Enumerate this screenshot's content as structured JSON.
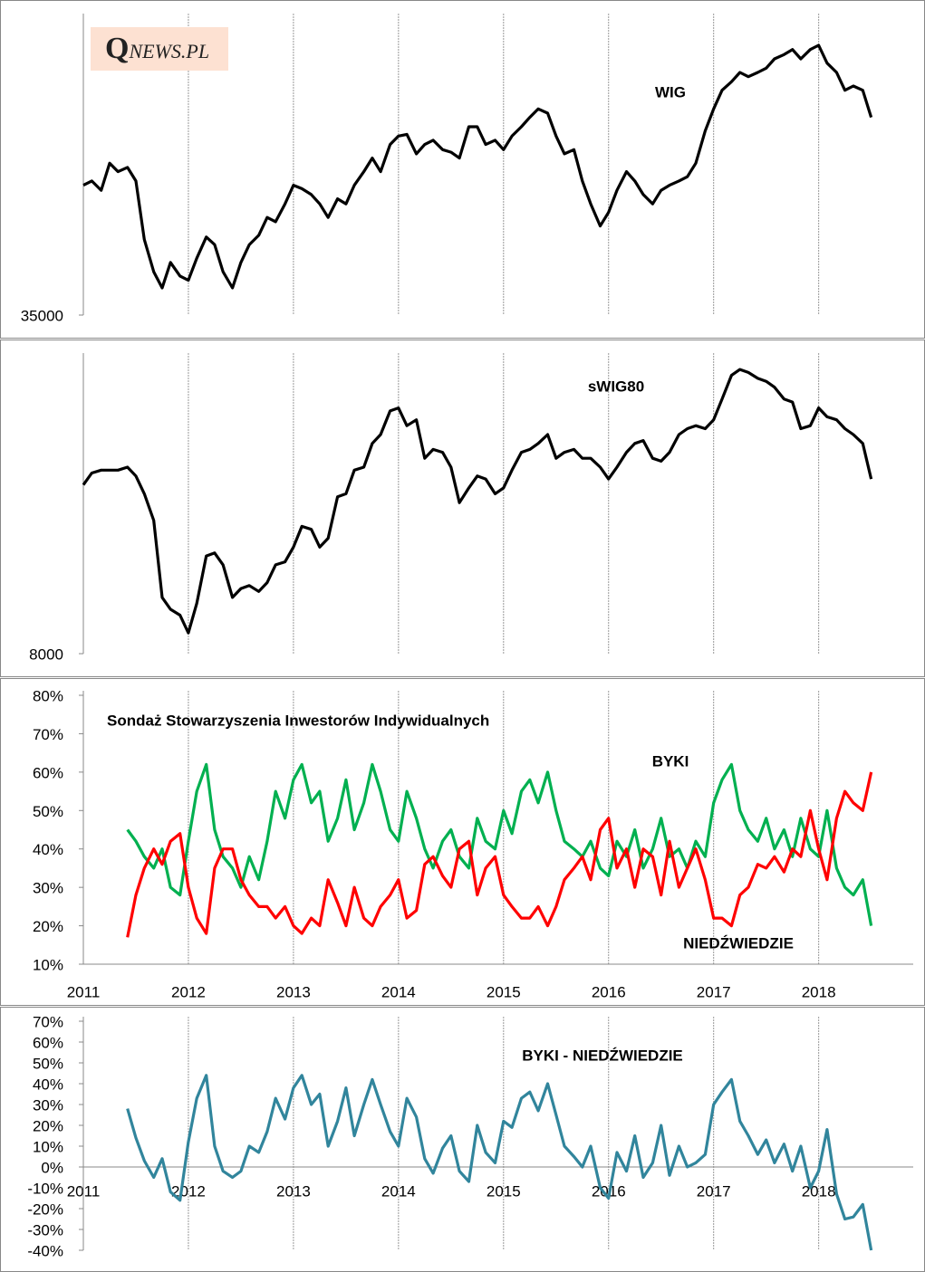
{
  "logo": "QNEWS.PL",
  "chart_data": [
    {
      "type": "line",
      "x_labels": false,
      "xlim": [
        2011,
        2018.9
      ],
      "xticks": [
        2011,
        2012,
        2013,
        2014,
        2015,
        2016,
        2017,
        2018
      ],
      "ylim": [
        35000,
        70000
      ],
      "yticks": [
        35000
      ],
      "x": [
        2011,
        2011.08,
        2011.17,
        2011.25,
        2011.33,
        2011.42,
        2011.5,
        2011.58,
        2011.67,
        2011.75,
        2011.83,
        2011.92,
        2012,
        2012.08,
        2012.17,
        2012.25,
        2012.33,
        2012.42,
        2012.5,
        2012.58,
        2012.67,
        2012.75,
        2012.83,
        2012.92,
        2013,
        2013.08,
        2013.17,
        2013.25,
        2013.33,
        2013.42,
        2013.5,
        2013.58,
        2013.67,
        2013.75,
        2013.83,
        2013.92,
        2014,
        2014.08,
        2014.17,
        2014.25,
        2014.33,
        2014.42,
        2014.5,
        2014.58,
        2014.67,
        2014.75,
        2014.83,
        2014.92,
        2015,
        2015.08,
        2015.17,
        2015.25,
        2015.33,
        2015.42,
        2015.5,
        2015.58,
        2015.67,
        2015.75,
        2015.83,
        2015.92,
        2016,
        2016.08,
        2016.17,
        2016.25,
        2016.33,
        2016.42,
        2016.5,
        2016.58,
        2016.67,
        2016.75,
        2016.83,
        2016.92,
        2017,
        2017.08,
        2017.17,
        2017.25,
        2017.33,
        2017.42,
        2017.5,
        2017.58,
        2017.67,
        2017.75,
        2017.83,
        2017.92,
        2018,
        2018.08,
        2018.17,
        2018.25,
        2018.33,
        2018.42,
        2018.5
      ],
      "series": [
        {
          "name": "WIG",
          "color": "#000000",
          "values": [
            50300,
            50800,
            49700,
            52900,
            51900,
            52400,
            50800,
            43900,
            40100,
            38200,
            41200,
            39600,
            39100,
            41700,
            44200,
            43300,
            40100,
            38200,
            41200,
            43300,
            44400,
            46500,
            46000,
            48100,
            50300,
            49900,
            49200,
            48100,
            46500,
            48700,
            48100,
            50300,
            51900,
            53500,
            51900,
            55100,
            56100,
            56300,
            54000,
            55100,
            55600,
            54500,
            54200,
            53500,
            57200,
            57200,
            55100,
            55600,
            54500,
            56100,
            57200,
            58300,
            59300,
            58800,
            56100,
            54000,
            54500,
            50800,
            48100,
            45500,
            47100,
            49700,
            51900,
            50800,
            49200,
            48100,
            49700,
            50300,
            50800,
            51300,
            52900,
            56700,
            59300,
            61500,
            62500,
            63600,
            63100,
            63600,
            64100,
            65200,
            65700,
            66300,
            65200,
            66300,
            66800,
            64700,
            63600,
            61500,
            62000,
            61500,
            58300
          ]
        }
      ]
    },
    {
      "type": "line",
      "x_labels": false,
      "xlim": [
        2011,
        2018.9
      ],
      "xticks": [
        2011,
        2012,
        2013,
        2014,
        2015,
        2016,
        2017,
        2018
      ],
      "ylim": [
        8000,
        18000
      ],
      "yticks": [
        8000
      ],
      "x": [
        2011,
        2011.08,
        2011.17,
        2011.25,
        2011.33,
        2011.42,
        2011.5,
        2011.58,
        2011.67,
        2011.75,
        2011.83,
        2011.92,
        2012,
        2012.08,
        2012.17,
        2012.25,
        2012.33,
        2012.42,
        2012.5,
        2012.58,
        2012.67,
        2012.75,
        2012.83,
        2012.92,
        2013,
        2013.08,
        2013.17,
        2013.25,
        2013.33,
        2013.42,
        2013.5,
        2013.58,
        2013.67,
        2013.75,
        2013.83,
        2013.92,
        2014,
        2014.08,
        2014.17,
        2014.25,
        2014.33,
        2014.42,
        2014.5,
        2014.58,
        2014.67,
        2014.75,
        2014.83,
        2014.92,
        2015,
        2015.08,
        2015.17,
        2015.25,
        2015.33,
        2015.42,
        2015.5,
        2015.58,
        2015.67,
        2015.75,
        2015.83,
        2015.92,
        2016,
        2016.08,
        2016.17,
        2016.25,
        2016.33,
        2016.42,
        2016.5,
        2016.58,
        2016.67,
        2016.75,
        2016.83,
        2016.92,
        2017,
        2017.08,
        2017.17,
        2017.25,
        2017.33,
        2017.42,
        2017.5,
        2017.58,
        2017.67,
        2017.75,
        2017.83,
        2017.92,
        2018,
        2018.08,
        2018.17,
        2018.25,
        2018.33,
        2018.42,
        2018.5
      ],
      "series": [
        {
          "name": "sWIG80",
          "color": "#000000",
          "values": [
            13700,
            14100,
            14200,
            14200,
            14200,
            14300,
            14000,
            13400,
            12500,
            9900,
            9500,
            9300,
            8700,
            9700,
            11300,
            11400,
            11000,
            9900,
            10200,
            10300,
            10100,
            10400,
            11000,
            11100,
            11600,
            12300,
            12200,
            11600,
            11900,
            13300,
            13400,
            14200,
            14300,
            15100,
            15400,
            16200,
            16300,
            15700,
            15900,
            14600,
            14900,
            14800,
            14300,
            13100,
            13600,
            14000,
            13900,
            13400,
            13600,
            14200,
            14800,
            14900,
            15100,
            15400,
            14600,
            14800,
            14900,
            14600,
            14600,
            14300,
            13900,
            14300,
            14800,
            15100,
            15200,
            14600,
            14500,
            14800,
            15400,
            15600,
            15700,
            15600,
            15900,
            16600,
            17400,
            17600,
            17500,
            17300,
            17200,
            17000,
            16600,
            16500,
            15600,
            15700,
            16300,
            16000,
            15900,
            15600,
            15400,
            15100,
            13900
          ]
        }
      ]
    },
    {
      "type": "line",
      "title": "Sondaż Stowarzyszenia Inwestorów Indywidualnych",
      "xlim": [
        2011,
        2018.9
      ],
      "xticks": [
        2011,
        2012,
        2013,
        2014,
        2015,
        2016,
        2017,
        2018
      ],
      "ylim": [
        10,
        80
      ],
      "yticks": [
        {
          "value": 10,
          "label": "10%"
        },
        {
          "value": 20,
          "label": "20%"
        },
        {
          "value": 30,
          "label": "30%"
        },
        {
          "value": 40,
          "label": "40%"
        },
        {
          "value": 50,
          "label": "50%"
        },
        {
          "value": 60,
          "label": "60%"
        },
        {
          "value": 70,
          "label": "70%"
        },
        {
          "value": 80,
          "label": "80%"
        }
      ],
      "x": [
        2011.42,
        2011.5,
        2011.58,
        2011.67,
        2011.75,
        2011.83,
        2011.92,
        2012,
        2012.08,
        2012.17,
        2012.25,
        2012.33,
        2012.42,
        2012.5,
        2012.58,
        2012.67,
        2012.75,
        2012.83,
        2012.92,
        2013,
        2013.08,
        2013.17,
        2013.25,
        2013.33,
        2013.42,
        2013.5,
        2013.58,
        2013.67,
        2013.75,
        2013.83,
        2013.92,
        2014,
        2014.08,
        2014.17,
        2014.25,
        2014.33,
        2014.42,
        2014.5,
        2014.58,
        2014.67,
        2014.75,
        2014.83,
        2014.92,
        2015,
        2015.08,
        2015.17,
        2015.25,
        2015.33,
        2015.42,
        2015.5,
        2015.58,
        2015.67,
        2015.75,
        2015.83,
        2015.92,
        2016,
        2016.08,
        2016.17,
        2016.25,
        2016.33,
        2016.42,
        2016.5,
        2016.58,
        2016.67,
        2016.75,
        2016.83,
        2016.92,
        2017,
        2017.08,
        2017.17,
        2017.25,
        2017.33,
        2017.42,
        2017.5,
        2017.58,
        2017.67,
        2017.75,
        2017.83,
        2017.92,
        2018,
        2018.08,
        2018.17,
        2018.25,
        2018.33,
        2018.42,
        2018.5
      ],
      "series": [
        {
          "name": "BYKI",
          "color": "#00b050",
          "values": [
            45,
            42,
            38,
            35,
            40,
            30,
            28,
            42,
            55,
            62,
            45,
            38,
            35,
            30,
            38,
            32,
            42,
            55,
            48,
            58,
            62,
            52,
            55,
            42,
            48,
            58,
            45,
            52,
            62,
            55,
            45,
            42,
            55,
            48,
            40,
            35,
            42,
            45,
            38,
            35,
            48,
            42,
            40,
            50,
            44,
            55,
            58,
            52,
            60,
            50,
            42,
            40,
            38,
            42,
            35,
            33,
            42,
            38,
            45,
            35,
            40,
            48,
            38,
            40,
            35,
            42,
            38,
            52,
            58,
            62,
            50,
            45,
            42,
            48,
            40,
            45,
            38,
            48,
            40,
            38,
            50,
            35,
            30,
            28,
            32,
            20
          ]
        },
        {
          "name": "NIEDŹWIEDZIE",
          "color": "#ff0000",
          "values": [
            17,
            28,
            35,
            40,
            36,
            42,
            44,
            30,
            22,
            18,
            35,
            40,
            40,
            32,
            28,
            25,
            25,
            22,
            25,
            20,
            18,
            22,
            20,
            32,
            26,
            20,
            30,
            22,
            20,
            25,
            28,
            32,
            22,
            24,
            36,
            38,
            33,
            30,
            40,
            42,
            28,
            35,
            38,
            28,
            25,
            22,
            22,
            25,
            20,
            25,
            32,
            35,
            38,
            32,
            45,
            48,
            35,
            40,
            30,
            40,
            38,
            28,
            42,
            30,
            35,
            40,
            32,
            22,
            22,
            20,
            28,
            30,
            36,
            35,
            38,
            34,
            40,
            38,
            50,
            40,
            32,
            48,
            55,
            52,
            50,
            60
          ]
        }
      ]
    },
    {
      "type": "line",
      "xlim": [
        2011,
        2018.9
      ],
      "xticks": [
        2011,
        2012,
        2013,
        2014,
        2015,
        2016,
        2017,
        2018
      ],
      "ylim": [
        -40,
        70
      ],
      "yticks": [
        {
          "value": -40,
          "label": "-40%"
        },
        {
          "value": -30,
          "label": "-30%"
        },
        {
          "value": -20,
          "label": "-20%"
        },
        {
          "value": -10,
          "label": "-10%"
        },
        {
          "value": 0,
          "label": "0%"
        },
        {
          "value": 10,
          "label": "10%"
        },
        {
          "value": 20,
          "label": "20%"
        },
        {
          "value": 30,
          "label": "30%"
        },
        {
          "value": 40,
          "label": "40%"
        },
        {
          "value": 50,
          "label": "50%"
        },
        {
          "value": 60,
          "label": "60%"
        },
        {
          "value": 70,
          "label": "70%"
        }
      ],
      "x": [
        2011.42,
        2011.5,
        2011.58,
        2011.67,
        2011.75,
        2011.83,
        2011.92,
        2012,
        2012.08,
        2012.17,
        2012.25,
        2012.33,
        2012.42,
        2012.5,
        2012.58,
        2012.67,
        2012.75,
        2012.83,
        2012.92,
        2013,
        2013.08,
        2013.17,
        2013.25,
        2013.33,
        2013.42,
        2013.5,
        2013.58,
        2013.67,
        2013.75,
        2013.83,
        2013.92,
        2014,
        2014.08,
        2014.17,
        2014.25,
        2014.33,
        2014.42,
        2014.5,
        2014.58,
        2014.67,
        2014.75,
        2014.83,
        2014.92,
        2015,
        2015.08,
        2015.17,
        2015.25,
        2015.33,
        2015.42,
        2015.5,
        2015.58,
        2015.67,
        2015.75,
        2015.83,
        2015.92,
        2016,
        2016.08,
        2016.17,
        2016.25,
        2016.33,
        2016.42,
        2016.5,
        2016.58,
        2016.67,
        2016.75,
        2016.83,
        2016.92,
        2017,
        2017.08,
        2017.17,
        2017.25,
        2017.33,
        2017.42,
        2017.5,
        2017.58,
        2017.67,
        2017.75,
        2017.83,
        2017.92,
        2018,
        2018.08,
        2018.17,
        2018.25,
        2018.33,
        2018.42,
        2018.5
      ],
      "series": [
        {
          "name": "BYKI - NIEDŹWIEDZIE",
          "color": "#31859c",
          "values": [
            28,
            14,
            3,
            -5,
            4,
            -12,
            -16,
            12,
            33,
            44,
            10,
            -2,
            -5,
            -2,
            10,
            7,
            17,
            33,
            23,
            38,
            44,
            30,
            35,
            10,
            22,
            38,
            15,
            30,
            42,
            30,
            17,
            10,
            33,
            24,
            4,
            -3,
            9,
            15,
            -2,
            -7,
            20,
            7,
            2,
            22,
            19,
            33,
            36,
            27,
            40,
            25,
            10,
            5,
            0,
            10,
            -10,
            -15,
            7,
            -2,
            15,
            -5,
            2,
            20,
            -4,
            10,
            0,
            2,
            6,
            30,
            36,
            42,
            22,
            15,
            6,
            13,
            2,
            11,
            -2,
            10,
            -10,
            -2,
            18,
            -13,
            -25,
            -24,
            -18,
            -40
          ]
        }
      ]
    }
  ]
}
